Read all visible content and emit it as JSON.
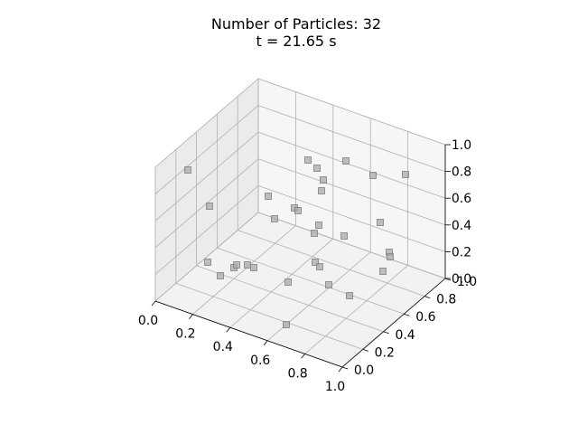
{
  "chart_data": {
    "type": "scatter",
    "title_line1": "Number of Particles: 32",
    "title_line2": "t = 21.65 s",
    "xlabel": "",
    "ylabel": "",
    "zlabel": "",
    "xlim": [
      0,
      1
    ],
    "ylim": [
      0,
      1
    ],
    "zlim": [
      0,
      1
    ],
    "grid": true,
    "x_ticks": [
      "0.0",
      "0.2",
      "0.4",
      "0.6",
      "0.8",
      "1.0"
    ],
    "y_ticks": [
      "0.0",
      "0.2",
      "0.4",
      "0.6",
      "0.8",
      "1.0"
    ],
    "z_ticks": [
      "0.0",
      "0.2",
      "0.4",
      "0.6",
      "0.8",
      "1.0"
    ],
    "marker_color": "#a9a9a9",
    "points_screen_estimate": [
      [
        208,
        188
      ],
      [
        232,
        228
      ],
      [
        297,
        217
      ],
      [
        304,
        242
      ],
      [
        326,
        230
      ],
      [
        330,
        233
      ],
      [
        341,
        177
      ],
      [
        351,
        186
      ],
      [
        358,
        199
      ],
      [
        356,
        211
      ],
      [
        383,
        178
      ],
      [
        413,
        194
      ],
      [
        449,
        193
      ],
      [
        353,
        249
      ],
      [
        348,
        258
      ],
      [
        381,
        261
      ],
      [
        421,
        246
      ],
      [
        431,
        279
      ],
      [
        432,
        284
      ],
      [
        424,
        300
      ],
      [
        230,
        290
      ],
      [
        244,
        305
      ],
      [
        259,
        296
      ],
      [
        262,
        293
      ],
      [
        274,
        293
      ],
      [
        281,
        296
      ],
      [
        319,
        312
      ],
      [
        349,
        290
      ],
      [
        354,
        295
      ],
      [
        364,
        315
      ],
      [
        387,
        327
      ],
      [
        317,
        359
      ]
    ]
  }
}
